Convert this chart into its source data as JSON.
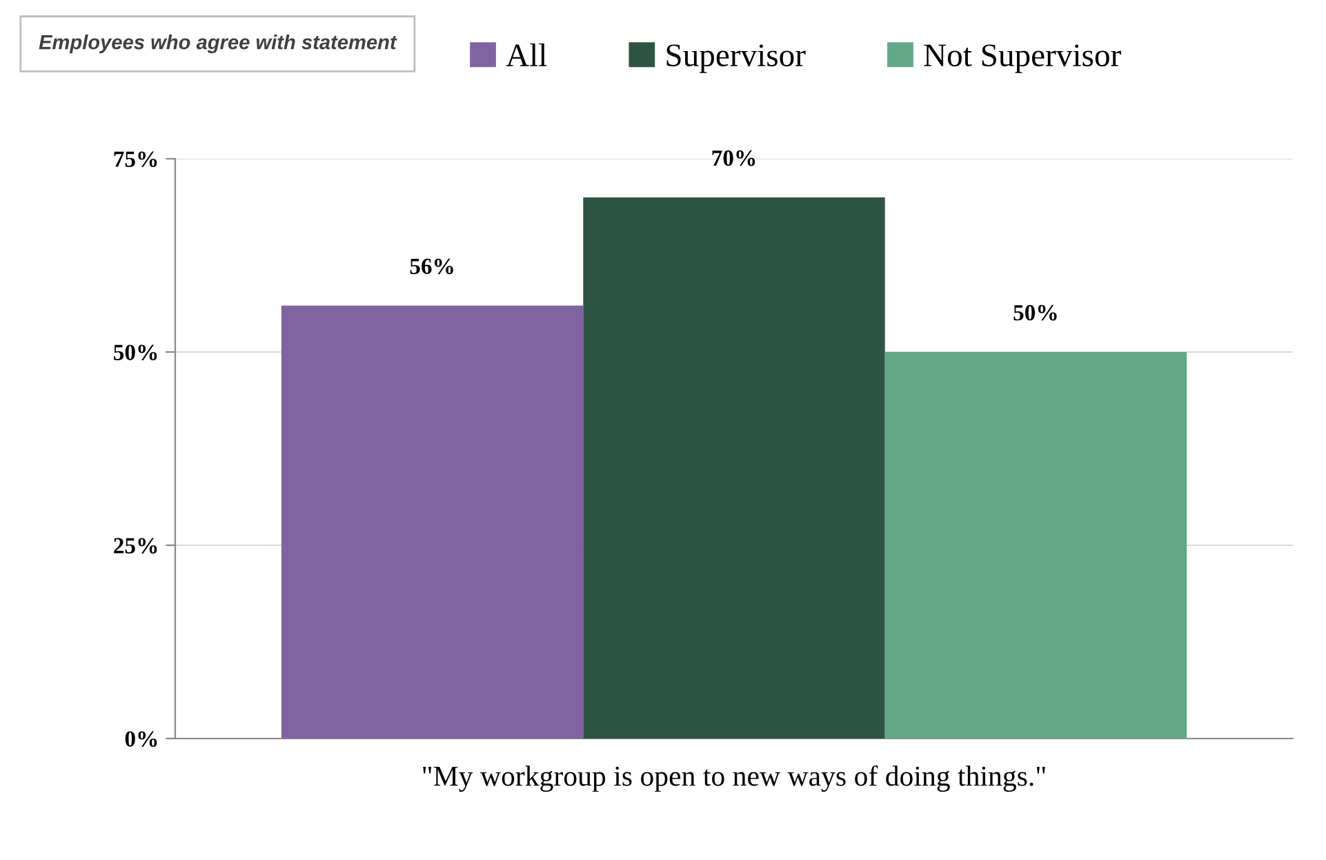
{
  "chart_data": {
    "type": "bar",
    "legend_title": "Employees who agree with statement",
    "categories": [
      "\"My workgroup is open to new ways of doing things.\""
    ],
    "series": [
      {
        "name": "All",
        "color": "#8064a2",
        "values": [
          56
        ],
        "value_labels": [
          "56%"
        ]
      },
      {
        "name": "Supervisor",
        "color": "#2e5443",
        "values": [
          70
        ],
        "value_labels": [
          "70%"
        ]
      },
      {
        "name": "Not Supervisor",
        "color": "#63a886",
        "values": [
          50
        ],
        "value_labels": [
          "50%"
        ]
      }
    ],
    "ylim": [
      0,
      75
    ],
    "yticks": [
      {
        "value": 0,
        "label": "0%"
      },
      {
        "value": 25,
        "label": "25%"
      },
      {
        "value": 50,
        "label": "50%"
      },
      {
        "value": 75,
        "label": "75%"
      }
    ],
    "grid": "y",
    "legend": "top"
  }
}
